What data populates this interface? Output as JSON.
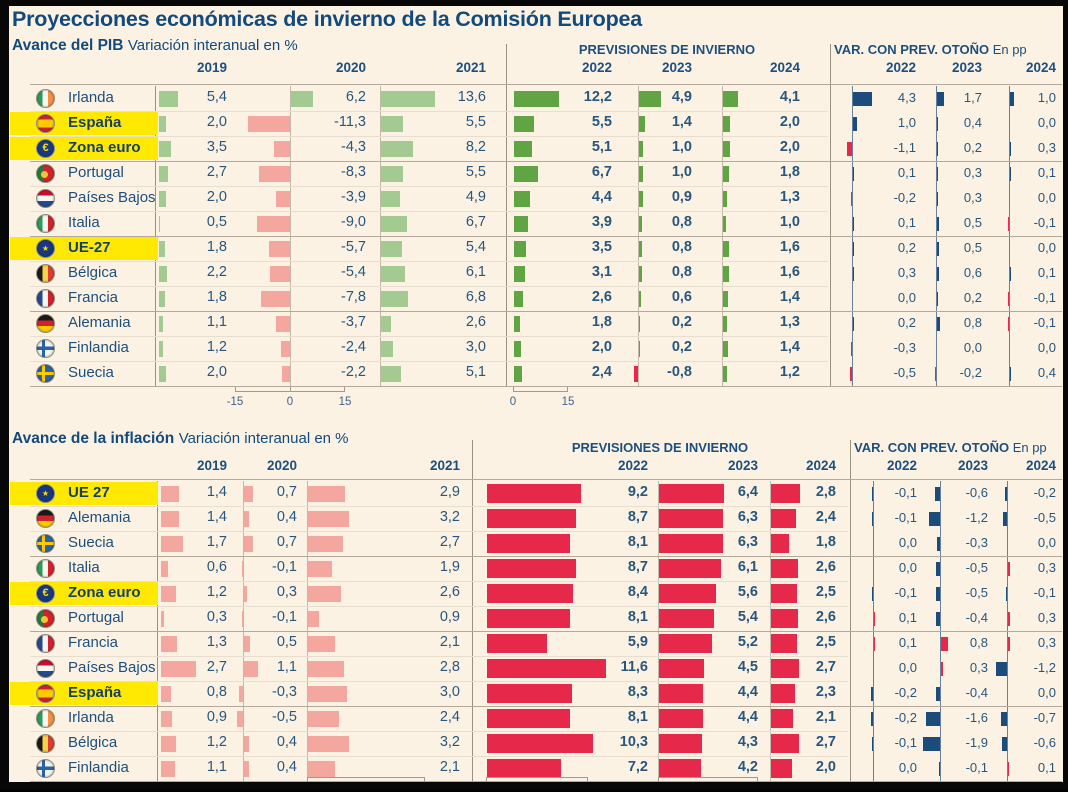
{
  "title": "Proyecciones económicas de invierno de la Comisión Europea",
  "palette": {
    "background": "#fbf2e4",
    "text_navy": "#1d4f7e",
    "highlight_yellow": "#ffe903",
    "green_light": "#a3ca90",
    "green_forecast": "#60a443",
    "salmon": "#f3a79e",
    "red_crimson": "#e6294b",
    "navy_bar": "#1b4c7b"
  },
  "chart_data": [
    {
      "type": "bar",
      "section": "gdp",
      "heading": "Avance del PIB",
      "heading_note": "Variación interanual en %",
      "hist_years": [
        "2019",
        "2020",
        "2021"
      ],
      "forecast_title": "PREVISIONES DE INVIERNO",
      "forecast_years": [
        "2022",
        "2023",
        "2024"
      ],
      "revision_title": "VAR. CON PREV. OTOÑO",
      "revision_unit": "En pp",
      "revision_years": [
        "2022",
        "2023",
        "2024"
      ],
      "axis_hist_ticks": [
        "-15",
        "0",
        "15"
      ],
      "axis_forecast_ticks": [
        "0",
        "15"
      ],
      "rows": [
        {
          "country": "Irlanda",
          "flag": "ireland",
          "highlight": false,
          "hist": [
            5.4,
            6.2,
            13.6
          ],
          "forecast": [
            12.2,
            4.9,
            4.1
          ],
          "revision": [
            4.3,
            1.7,
            1.0
          ]
        },
        {
          "country": "España",
          "flag": "spain",
          "highlight": true,
          "hist": [
            2.0,
            -11.3,
            5.5
          ],
          "forecast": [
            5.5,
            1.4,
            2.0
          ],
          "revision": [
            1.0,
            0.4,
            0.0
          ]
        },
        {
          "country": "Zona euro",
          "flag": "eurozone",
          "highlight": true,
          "hist": [
            3.5,
            -4.3,
            8.2
          ],
          "forecast": [
            5.1,
            1.0,
            2.0
          ],
          "revision": [
            -1.1,
            0.2,
            0.3
          ]
        },
        {
          "country": "Portugal",
          "flag": "portugal",
          "highlight": false,
          "hist": [
            2.7,
            -8.3,
            5.5
          ],
          "forecast": [
            6.7,
            1.0,
            1.8
          ],
          "revision": [
            0.1,
            0.3,
            0.1
          ]
        },
        {
          "country": "Países Bajos",
          "flag": "netherlands",
          "highlight": false,
          "hist": [
            2.0,
            -3.9,
            4.9
          ],
          "forecast": [
            4.4,
            0.9,
            1.3
          ],
          "revision": [
            -0.2,
            0.3,
            0.0
          ]
        },
        {
          "country": "Italia",
          "flag": "italy",
          "highlight": false,
          "hist": [
            0.5,
            -9.0,
            6.7
          ],
          "forecast": [
            3.9,
            0.8,
            1.0
          ],
          "revision": [
            0.1,
            0.5,
            -0.1
          ]
        },
        {
          "country": "UE-27",
          "flag": "eu",
          "highlight": true,
          "hist": [
            1.8,
            -5.7,
            5.4
          ],
          "forecast": [
            3.5,
            0.8,
            1.6
          ],
          "revision": [
            0.2,
            0.5,
            0.0
          ]
        },
        {
          "country": "Bélgica",
          "flag": "belgium",
          "highlight": false,
          "hist": [
            2.2,
            -5.4,
            6.1
          ],
          "forecast": [
            3.1,
            0.8,
            1.6
          ],
          "revision": [
            0.3,
            0.6,
            0.1
          ]
        },
        {
          "country": "Francia",
          "flag": "france",
          "highlight": false,
          "hist": [
            1.8,
            -7.8,
            6.8
          ],
          "forecast": [
            2.6,
            0.6,
            1.4
          ],
          "revision": [
            0.0,
            0.2,
            -0.1
          ]
        },
        {
          "country": "Alemania",
          "flag": "germany",
          "highlight": false,
          "hist": [
            1.1,
            -3.7,
            2.6
          ],
          "forecast": [
            1.8,
            0.2,
            1.3
          ],
          "revision": [
            0.2,
            0.8,
            -0.1
          ]
        },
        {
          "country": "Finlandia",
          "flag": "finland",
          "highlight": false,
          "hist": [
            1.2,
            -2.4,
            3.0
          ],
          "forecast": [
            2.0,
            0.2,
            1.4
          ],
          "revision": [
            -0.3,
            0.0,
            0.0
          ]
        },
        {
          "country": "Suecia",
          "flag": "sweden",
          "highlight": false,
          "hist": [
            2.0,
            -2.2,
            5.1
          ],
          "forecast": [
            2.4,
            -0.8,
            1.2
          ],
          "revision": [
            -0.5,
            -0.2,
            0.4
          ]
        }
      ]
    },
    {
      "type": "bar",
      "section": "inflation",
      "heading": "Avance de la inflación",
      "heading_note": "Variación interanual en %",
      "hist_years": [
        "2019",
        "2020",
        "2021"
      ],
      "forecast_title": "PREVISIONES DE INVIERNO",
      "forecast_years": [
        "2022",
        "2023",
        "2024"
      ],
      "revision_title": "VAR. CON PREV. OTOÑO",
      "revision_unit": "En pp",
      "revision_years": [
        "2022",
        "2023",
        "2024"
      ],
      "rows": [
        {
          "country": "UE 27",
          "flag": "eu",
          "highlight": true,
          "hist": [
            1.4,
            0.7,
            2.9
          ],
          "forecast": [
            9.2,
            6.4,
            2.8
          ],
          "revision": [
            -0.1,
            -0.6,
            -0.2
          ]
        },
        {
          "country": "Alemania",
          "flag": "germany",
          "highlight": false,
          "hist": [
            1.4,
            0.4,
            3.2
          ],
          "forecast": [
            8.7,
            6.3,
            2.4
          ],
          "revision": [
            -0.1,
            -1.2,
            -0.5
          ]
        },
        {
          "country": "Suecia",
          "flag": "sweden",
          "highlight": false,
          "hist": [
            1.7,
            0.7,
            2.7
          ],
          "forecast": [
            8.1,
            6.3,
            1.8
          ],
          "revision": [
            0.0,
            -0.3,
            0.0
          ]
        },
        {
          "country": "Italia",
          "flag": "italy",
          "highlight": false,
          "hist": [
            0.6,
            -0.1,
            1.9
          ],
          "forecast": [
            8.7,
            6.1,
            2.6
          ],
          "revision": [
            0.0,
            -0.5,
            0.3
          ]
        },
        {
          "country": "Zona euro",
          "flag": "eurozone",
          "highlight": true,
          "hist": [
            1.2,
            0.3,
            2.6
          ],
          "forecast": [
            8.4,
            5.6,
            2.5
          ],
          "revision": [
            -0.1,
            -0.5,
            -0.1
          ]
        },
        {
          "country": "Portugal",
          "flag": "portugal",
          "highlight": false,
          "hist": [
            0.3,
            -0.1,
            0.9
          ],
          "forecast": [
            8.1,
            5.4,
            2.6
          ],
          "revision": [
            0.1,
            -0.4,
            0.3
          ]
        },
        {
          "country": "Francia",
          "flag": "france",
          "highlight": false,
          "hist": [
            1.3,
            0.5,
            2.1
          ],
          "forecast": [
            5.9,
            5.2,
            2.5
          ],
          "revision": [
            0.1,
            0.8,
            0.3
          ]
        },
        {
          "country": "Países Bajos",
          "flag": "netherlands",
          "highlight": false,
          "hist": [
            2.7,
            1.1,
            2.8
          ],
          "forecast": [
            11.6,
            4.5,
            2.7
          ],
          "revision": [
            0.0,
            0.3,
            -1.2
          ]
        },
        {
          "country": "España",
          "flag": "spain",
          "highlight": true,
          "hist": [
            0.8,
            -0.3,
            3.0
          ],
          "forecast": [
            8.3,
            4.4,
            2.3
          ],
          "revision": [
            -0.2,
            -0.4,
            0.0
          ]
        },
        {
          "country": "Irlanda",
          "flag": "ireland",
          "highlight": false,
          "hist": [
            0.9,
            -0.5,
            2.4
          ],
          "forecast": [
            8.1,
            4.4,
            2.1
          ],
          "revision": [
            -0.2,
            -1.6,
            -0.7
          ]
        },
        {
          "country": "Bélgica",
          "flag": "belgium",
          "highlight": false,
          "hist": [
            1.2,
            0.4,
            3.2
          ],
          "forecast": [
            10.3,
            4.3,
            2.7
          ],
          "revision": [
            -0.1,
            -1.9,
            -0.6
          ]
        },
        {
          "country": "Finlandia",
          "flag": "finland",
          "highlight": false,
          "hist": [
            1.1,
            0.4,
            2.1
          ],
          "forecast": [
            7.2,
            4.2,
            2.0
          ],
          "revision": [
            0.0,
            -0.1,
            0.1
          ]
        }
      ]
    }
  ]
}
